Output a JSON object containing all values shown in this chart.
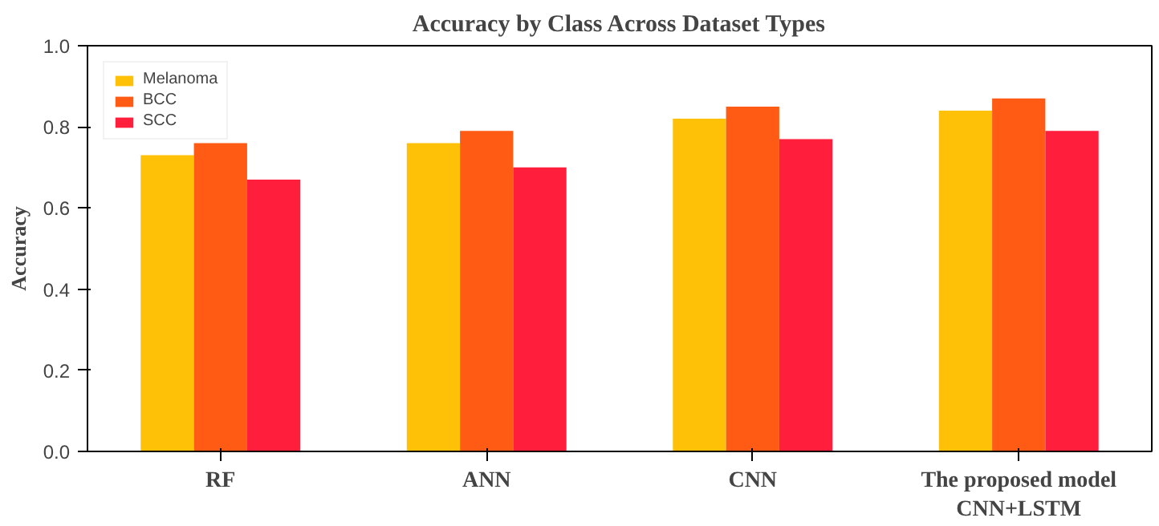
{
  "chart_data": {
    "type": "bar",
    "title": "Accuracy by Class Across Dataset Types",
    "ylabel": "Accuracy",
    "categories": [
      "RF",
      "ANN",
      "CNN",
      "The proposed model\nCNN+LSTM"
    ],
    "series": [
      {
        "name": "Melanoma",
        "color": "#ffc107",
        "values": [
          0.73,
          0.76,
          0.82,
          0.84
        ]
      },
      {
        "name": "BCC",
        "color": "#ff5b14",
        "values": [
          0.76,
          0.79,
          0.85,
          0.87
        ]
      },
      {
        "name": "SCC",
        "color": "#ff1f3d",
        "values": [
          0.67,
          0.7,
          0.77,
          0.79
        ]
      }
    ],
    "ylim": [
      0,
      1.0
    ],
    "yticks": [
      {
        "value": 0,
        "label": "0.0"
      },
      0.2,
      0.4,
      0.6,
      0.8,
      {
        "value": 1.0,
        "label": "1.0"
      }
    ],
    "grid": false,
    "legend": "top left"
  }
}
